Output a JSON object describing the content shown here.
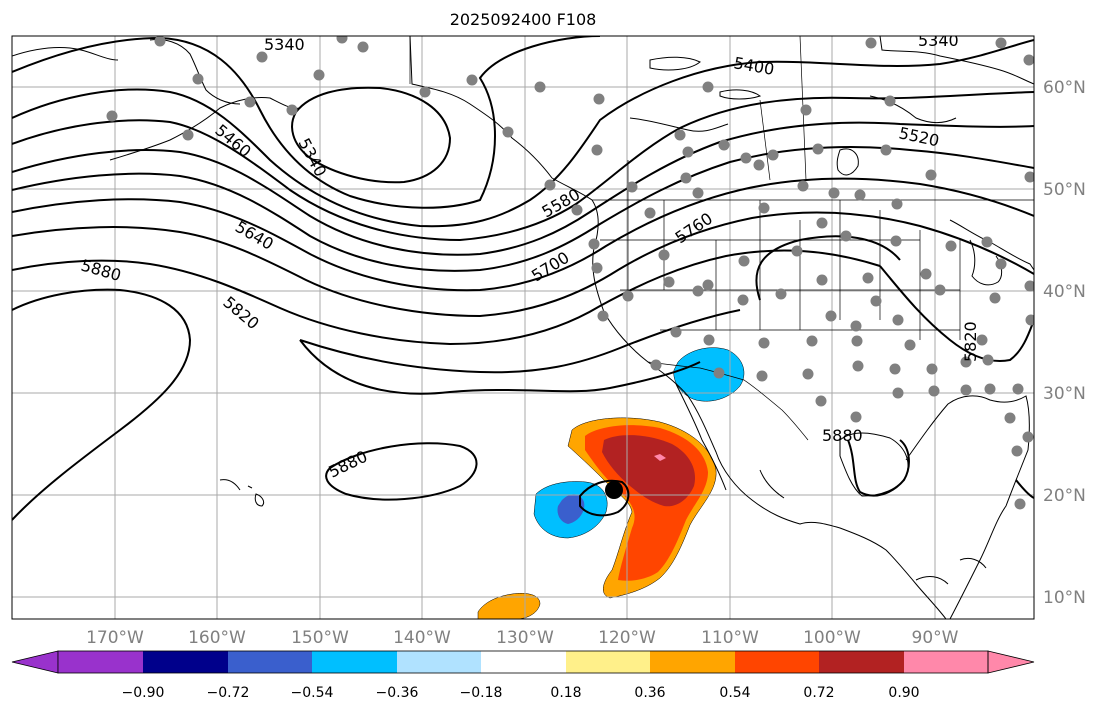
{
  "title": "2025092400 F108",
  "lon_labels": [
    "170°W",
    "160°W",
    "150°W",
    "140°W",
    "130°W",
    "120°W",
    "110°W",
    "100°W",
    "90°W"
  ],
  "lat_labels": [
    "60°N",
    "50°N",
    "40°N",
    "30°N",
    "20°N",
    "10°N"
  ],
  "contour_labels": [
    "5340",
    "5340",
    "5340",
    "5400",
    "5460",
    "5520",
    "5580",
    "5640",
    "5700",
    "5760",
    "5820",
    "5820",
    "5880",
    "5880",
    "5880"
  ],
  "colorbar": {
    "ticks": [
      "−0.90",
      "−0.72",
      "−0.54",
      "−0.36",
      "−0.18",
      "0.18",
      "0.36",
      "0.54",
      "0.72",
      "0.90"
    ],
    "colors": [
      "#9932cc",
      "#00008b",
      "#3a5fcd",
      "#00bfff",
      "#b0e2ff",
      "#ffffff",
      "#fff08a",
      "#ffa500",
      "#ff4500",
      "#b22222",
      "#ff88aa"
    ]
  },
  "colors": {
    "storm_center": "#000000",
    "stations": "#808080"
  }
}
